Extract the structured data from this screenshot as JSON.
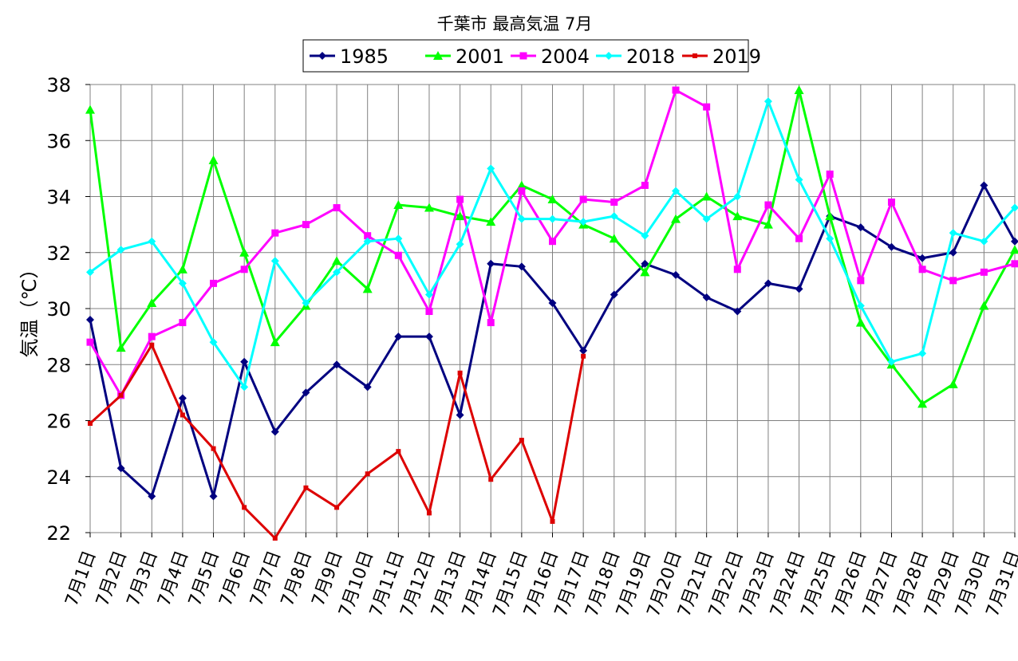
{
  "chart_data": {
    "type": "line",
    "title": "千葉市 最高気温 7月",
    "xlabel": "",
    "ylabel": "気温（℃）",
    "ylim": [
      22,
      38
    ],
    "yticks": [
      "22",
      "24",
      "26",
      "28",
      "30",
      "32",
      "34",
      "36",
      "38"
    ],
    "grid": true,
    "legend_position": "top",
    "categories": [
      "7月1日",
      "7月2日",
      "7月3日",
      "7月4日",
      "7月5日",
      "7月6日",
      "7月7日",
      "7月8日",
      "7月9日",
      "7月10日",
      "7月11日",
      "7月12日",
      "7月13日",
      "7月14日",
      "7月15日",
      "7月16日",
      "7月17日",
      "7月18日",
      "7月19日",
      "7月20日",
      "7月21日",
      "7月22日",
      "7月23日",
      "7月24日",
      "7月25日",
      "7月26日",
      "7月27日",
      "7月28日",
      "7月29日",
      "7月30日",
      "7月31日"
    ],
    "series": [
      {
        "name": "1985",
        "color": "#000080",
        "marker": "diamond",
        "values": [
          29.6,
          24.3,
          23.3,
          26.8,
          23.3,
          28.1,
          25.6,
          27.0,
          28.0,
          27.2,
          29.0,
          29.0,
          26.2,
          31.6,
          31.5,
          30.2,
          28.5,
          30.5,
          31.6,
          31.2,
          30.4,
          29.9,
          30.9,
          30.7,
          33.3,
          32.9,
          32.2,
          31.8,
          32.0,
          34.4,
          32.4
        ]
      },
      {
        "name": "2001",
        "color": "#00ff00",
        "marker": "triangle",
        "values": [
          37.1,
          28.6,
          30.2,
          31.4,
          35.3,
          32.0,
          28.8,
          30.1,
          31.7,
          30.7,
          33.7,
          33.6,
          33.3,
          33.1,
          34.4,
          33.9,
          33.0,
          32.5,
          31.3,
          33.2,
          34.0,
          33.3,
          33.0,
          37.8,
          33.3,
          29.5,
          28.0,
          26.6,
          27.3,
          30.1,
          32.1
        ]
      },
      {
        "name": "2004",
        "color": "#ff00ff",
        "marker": "square",
        "values": [
          28.8,
          26.9,
          29.0,
          29.5,
          30.9,
          31.4,
          32.7,
          33.0,
          33.6,
          32.6,
          31.9,
          29.9,
          33.9,
          29.5,
          34.2,
          32.4,
          33.9,
          33.8,
          34.4,
          37.8,
          37.2,
          31.4,
          33.7,
          32.5,
          34.8,
          31.0,
          33.8,
          31.4,
          31.0,
          31.3,
          31.6
        ]
      },
      {
        "name": "2018",
        "color": "#00ffff",
        "marker": "diamond",
        "values": [
          31.3,
          32.1,
          32.4,
          30.9,
          28.8,
          27.2,
          31.7,
          30.2,
          31.3,
          32.4,
          32.5,
          30.5,
          32.3,
          35.0,
          33.2,
          33.2,
          33.1,
          33.3,
          32.6,
          34.2,
          33.2,
          34.0,
          37.4,
          34.6,
          32.5,
          30.1,
          28.1,
          28.4,
          32.7,
          32.4,
          33.6
        ]
      },
      {
        "name": "2019",
        "color": "#dd0000",
        "marker": "square-small",
        "values": [
          25.9,
          26.9,
          28.7,
          26.2,
          25.0,
          22.9,
          21.8,
          23.6,
          22.9,
          24.1,
          24.9,
          22.7,
          27.7,
          23.9,
          25.3,
          22.4,
          28.3,
          null,
          null,
          null,
          null,
          null,
          null,
          null,
          null,
          null,
          null,
          null,
          null,
          null,
          null
        ]
      }
    ]
  }
}
